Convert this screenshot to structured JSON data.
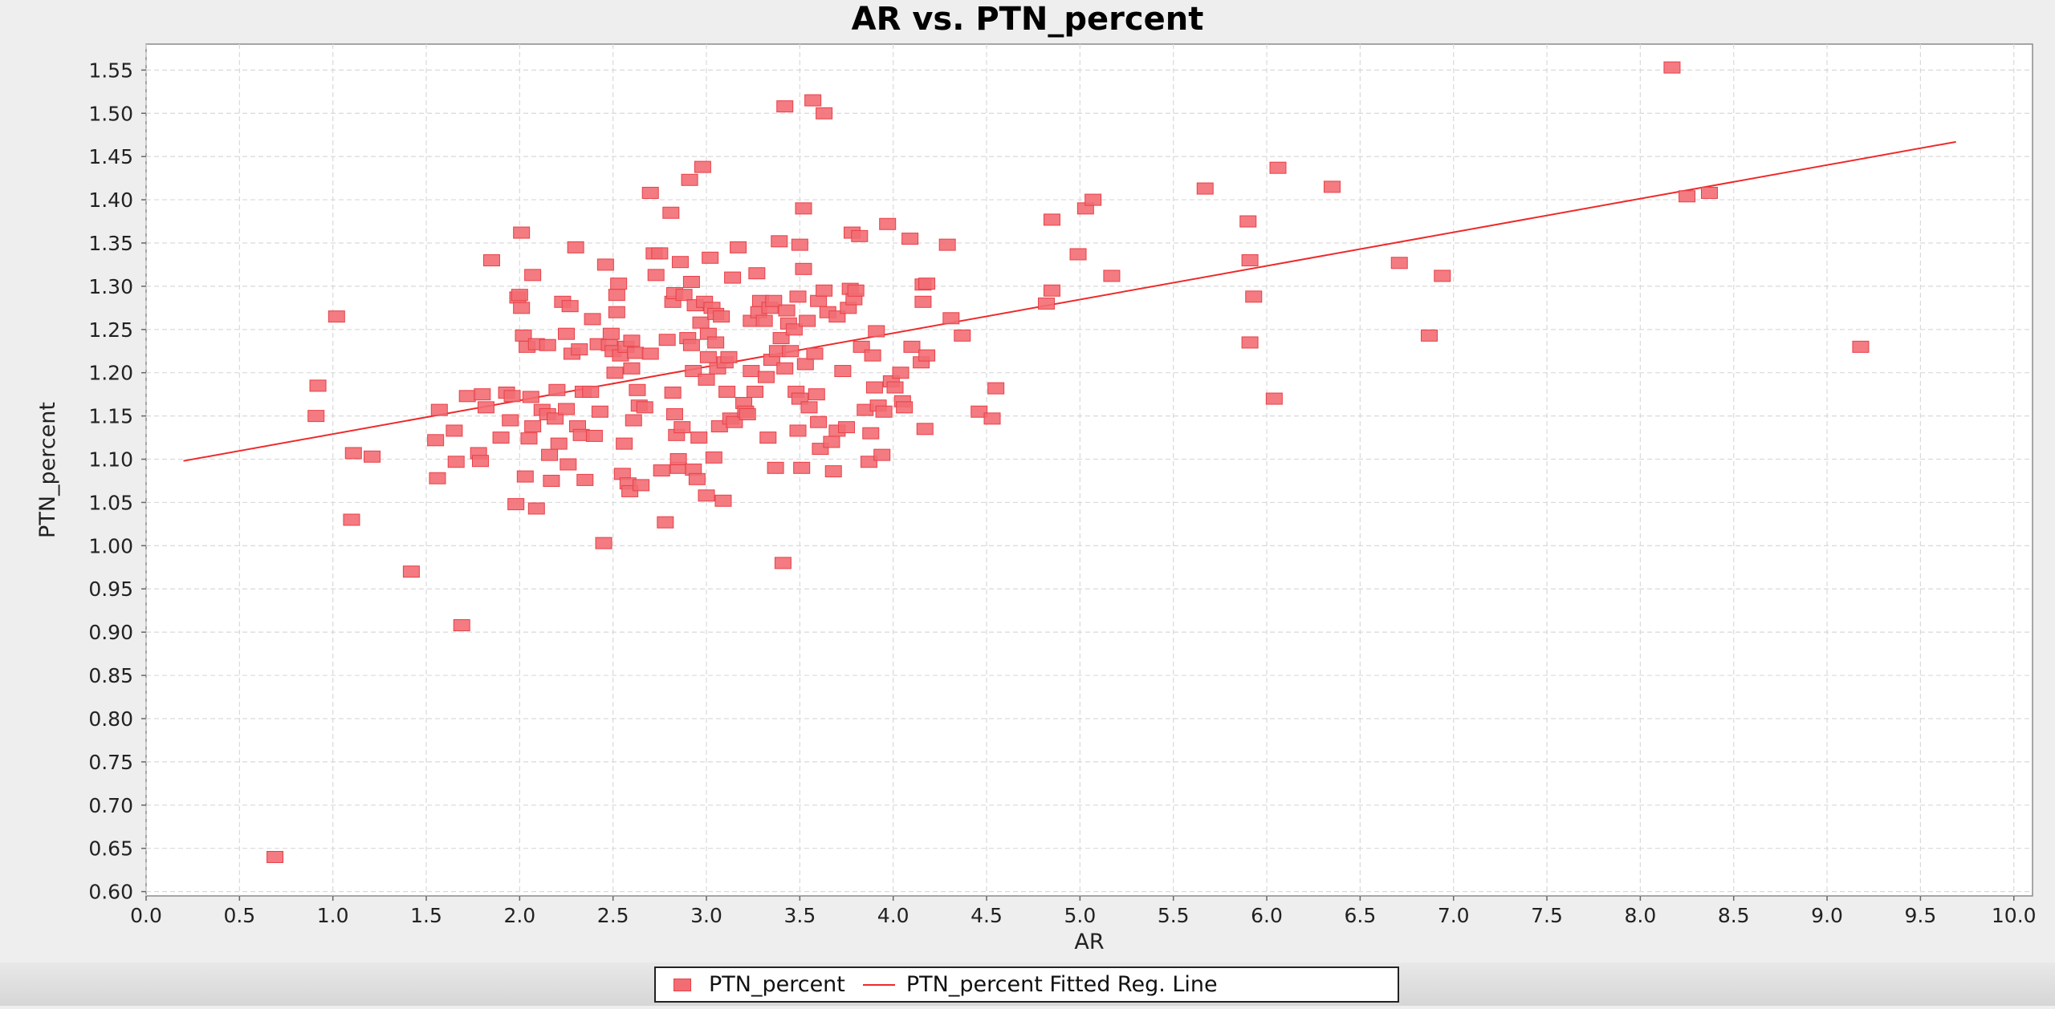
{
  "window": {
    "title": "AR vs. PTN_percent"
  },
  "colors": {
    "marker": "#f26d73",
    "marker_stroke": "#e84048",
    "line": "#ee2a2a",
    "grid": "#d9d9d9",
    "plot_bg": "#ffffff",
    "page_bg": "#eeeeee"
  },
  "chart_data": {
    "type": "scatter",
    "title": "AR vs. PTN_percent",
    "xlabel": "AR",
    "ylabel": "PTN_percent",
    "xlim": [
      0.0,
      10.1
    ],
    "ylim": [
      0.595,
      1.58
    ],
    "x_ticks": [
      "0.0",
      "0.5",
      "1.0",
      "1.5",
      "2.0",
      "2.5",
      "3.0",
      "3.5",
      "4.0",
      "4.5",
      "5.0",
      "5.5",
      "6.0",
      "6.5",
      "7.0",
      "7.5",
      "8.0",
      "8.5",
      "9.0",
      "9.5",
      "10.0"
    ],
    "y_ticks": [
      "0.60",
      "0.65",
      "0.70",
      "0.75",
      "0.80",
      "0.85",
      "0.90",
      "0.95",
      "1.00",
      "1.05",
      "1.10",
      "1.15",
      "1.20",
      "1.25",
      "1.30",
      "1.35",
      "1.40",
      "1.45",
      "1.50",
      "1.55"
    ],
    "grid": true,
    "legend_position": "bottom-center",
    "series": [
      {
        "name": "PTN_percent",
        "kind": "scatter",
        "points": [
          [
            0.69,
            0.64
          ],
          [
            0.91,
            1.15
          ],
          [
            0.92,
            1.185
          ],
          [
            1.02,
            1.265
          ],
          [
            1.1,
            1.03
          ],
          [
            1.11,
            1.107
          ],
          [
            1.21,
            1.103
          ],
          [
            1.42,
            0.97
          ],
          [
            1.55,
            1.122
          ],
          [
            1.56,
            1.078
          ],
          [
            1.57,
            1.157
          ],
          [
            1.65,
            1.133
          ],
          [
            1.66,
            1.097
          ],
          [
            1.69,
            0.908
          ],
          [
            1.72,
            1.173
          ],
          [
            1.78,
            1.107
          ],
          [
            1.79,
            1.098
          ],
          [
            1.8,
            1.175
          ],
          [
            1.82,
            1.16
          ],
          [
            1.85,
            1.33
          ],
          [
            1.9,
            1.125
          ],
          [
            1.93,
            1.177
          ],
          [
            1.95,
            1.145
          ],
          [
            1.96,
            1.173
          ],
          [
            1.98,
            1.048
          ],
          [
            1.99,
            1.287
          ],
          [
            2.0,
            1.29
          ],
          [
            2.01,
            1.275
          ],
          [
            2.01,
            1.362
          ],
          [
            2.02,
            1.243
          ],
          [
            2.03,
            1.08
          ],
          [
            2.04,
            1.23
          ],
          [
            2.05,
            1.124
          ],
          [
            2.06,
            1.172
          ],
          [
            2.07,
            1.138
          ],
          [
            2.07,
            1.313
          ],
          [
            2.09,
            1.233
          ],
          [
            2.09,
            1.043
          ],
          [
            2.12,
            1.157
          ],
          [
            2.15,
            1.232
          ],
          [
            2.15,
            1.152
          ],
          [
            2.16,
            1.105
          ],
          [
            2.17,
            1.075
          ],
          [
            2.19,
            1.147
          ],
          [
            2.2,
            1.18
          ],
          [
            2.21,
            1.118
          ],
          [
            2.23,
            1.282
          ],
          [
            2.25,
            1.245
          ],
          [
            2.25,
            1.158
          ],
          [
            2.26,
            1.094
          ],
          [
            2.27,
            1.277
          ],
          [
            2.28,
            1.222
          ],
          [
            2.3,
            1.345
          ],
          [
            2.31,
            1.138
          ],
          [
            2.32,
            1.227
          ],
          [
            2.33,
            1.128
          ],
          [
            2.34,
            1.178
          ],
          [
            2.35,
            1.076
          ],
          [
            2.38,
            1.178
          ],
          [
            2.39,
            1.262
          ],
          [
            2.4,
            1.127
          ],
          [
            2.42,
            1.233
          ],
          [
            2.43,
            1.155
          ],
          [
            2.45,
            1.003
          ],
          [
            2.46,
            1.325
          ],
          [
            2.48,
            1.232
          ],
          [
            2.49,
            1.245
          ],
          [
            2.5,
            1.225
          ],
          [
            2.51,
            1.2
          ],
          [
            2.52,
            1.29
          ],
          [
            2.52,
            1.27
          ],
          [
            2.53,
            1.303
          ],
          [
            2.54,
            1.22
          ],
          [
            2.55,
            1.083
          ],
          [
            2.56,
            1.118
          ],
          [
            2.57,
            1.23
          ],
          [
            2.58,
            1.072
          ],
          [
            2.59,
            1.063
          ],
          [
            2.6,
            1.237
          ],
          [
            2.6,
            1.205
          ],
          [
            2.61,
            1.145
          ],
          [
            2.62,
            1.223
          ],
          [
            2.63,
            1.18
          ],
          [
            2.64,
            1.162
          ],
          [
            2.65,
            1.07
          ],
          [
            2.67,
            1.16
          ],
          [
            2.7,
            1.222
          ],
          [
            2.7,
            1.408
          ],
          [
            2.72,
            1.338
          ],
          [
            2.73,
            1.313
          ],
          [
            2.75,
            1.338
          ],
          [
            2.76,
            1.087
          ],
          [
            2.78,
            1.027
          ],
          [
            2.79,
            1.238
          ],
          [
            2.81,
            1.385
          ],
          [
            2.82,
            1.282
          ],
          [
            2.82,
            1.177
          ],
          [
            2.83,
            1.292
          ],
          [
            2.83,
            1.152
          ],
          [
            2.84,
            1.128
          ],
          [
            2.85,
            1.09
          ],
          [
            2.85,
            1.1
          ],
          [
            2.86,
            1.328
          ],
          [
            2.87,
            1.137
          ],
          [
            2.88,
            1.29
          ],
          [
            2.9,
            1.24
          ],
          [
            2.91,
            1.423
          ],
          [
            2.92,
            1.305
          ],
          [
            2.92,
            1.232
          ],
          [
            2.93,
            1.088
          ],
          [
            2.93,
            1.202
          ],
          [
            2.94,
            1.278
          ],
          [
            2.95,
            1.077
          ],
          [
            2.96,
            1.125
          ],
          [
            2.97,
            1.258
          ],
          [
            2.98,
            1.438
          ],
          [
            2.99,
            1.282
          ],
          [
            3.0,
            1.192
          ],
          [
            3.0,
            1.058
          ],
          [
            3.01,
            1.245
          ],
          [
            3.01,
            1.218
          ],
          [
            3.02,
            1.333
          ],
          [
            3.03,
            1.275
          ],
          [
            3.04,
            1.102
          ],
          [
            3.05,
            1.268
          ],
          [
            3.05,
            1.235
          ],
          [
            3.06,
            1.205
          ],
          [
            3.07,
            1.138
          ],
          [
            3.08,
            1.265
          ],
          [
            3.09,
            1.052
          ],
          [
            3.1,
            1.212
          ],
          [
            3.11,
            1.178
          ],
          [
            3.12,
            1.218
          ],
          [
            3.13,
            1.147
          ],
          [
            3.14,
            1.31
          ],
          [
            3.15,
            1.143
          ],
          [
            3.17,
            1.345
          ],
          [
            3.2,
            1.165
          ],
          [
            3.21,
            1.155
          ],
          [
            3.22,
            1.152
          ],
          [
            3.24,
            1.202
          ],
          [
            3.24,
            1.26
          ],
          [
            3.26,
            1.178
          ],
          [
            3.27,
            1.315
          ],
          [
            3.28,
            1.27
          ],
          [
            3.29,
            1.283
          ],
          [
            3.31,
            1.26
          ],
          [
            3.32,
            1.195
          ],
          [
            3.33,
            1.125
          ],
          [
            3.34,
            1.275
          ],
          [
            3.35,
            1.215
          ],
          [
            3.36,
            1.283
          ],
          [
            3.37,
            1.09
          ],
          [
            3.38,
            1.225
          ],
          [
            3.39,
            1.352
          ],
          [
            3.4,
            1.24
          ],
          [
            3.41,
            0.98
          ],
          [
            3.42,
            1.205
          ],
          [
            3.42,
            1.508
          ],
          [
            3.43,
            1.272
          ],
          [
            3.44,
            1.257
          ],
          [
            3.45,
            1.225
          ],
          [
            3.47,
            1.25
          ],
          [
            3.48,
            1.178
          ],
          [
            3.49,
            1.288
          ],
          [
            3.49,
            1.133
          ],
          [
            3.5,
            1.348
          ],
          [
            3.5,
            1.17
          ],
          [
            3.51,
            1.09
          ],
          [
            3.52,
            1.32
          ],
          [
            3.52,
            1.39
          ],
          [
            3.53,
            1.21
          ],
          [
            3.54,
            1.26
          ],
          [
            3.55,
            1.16
          ],
          [
            3.57,
            1.515
          ],
          [
            3.58,
            1.222
          ],
          [
            3.59,
            1.175
          ],
          [
            3.6,
            1.283
          ],
          [
            3.6,
            1.143
          ],
          [
            3.61,
            1.112
          ],
          [
            3.63,
            1.5
          ],
          [
            3.63,
            1.295
          ],
          [
            3.65,
            1.27
          ],
          [
            3.67,
            1.12
          ],
          [
            3.68,
            1.086
          ],
          [
            3.7,
            1.265
          ],
          [
            3.7,
            1.133
          ],
          [
            3.73,
            1.202
          ],
          [
            3.75,
            1.137
          ],
          [
            3.76,
            1.275
          ],
          [
            3.77,
            1.297
          ],
          [
            3.78,
            1.362
          ],
          [
            3.79,
            1.285
          ],
          [
            3.8,
            1.295
          ],
          [
            3.82,
            1.358
          ],
          [
            3.83,
            1.23
          ],
          [
            3.85,
            1.157
          ],
          [
            3.87,
            1.097
          ],
          [
            3.88,
            1.13
          ],
          [
            3.89,
            1.22
          ],
          [
            3.9,
            1.183
          ],
          [
            3.91,
            1.248
          ],
          [
            3.92,
            1.162
          ],
          [
            3.94,
            1.105
          ],
          [
            3.95,
            1.155
          ],
          [
            3.97,
            1.372
          ],
          [
            3.99,
            1.19
          ],
          [
            4.01,
            1.183
          ],
          [
            4.04,
            1.2
          ],
          [
            4.05,
            1.167
          ],
          [
            4.06,
            1.16
          ],
          [
            4.09,
            1.355
          ],
          [
            4.1,
            1.23
          ],
          [
            4.15,
            1.212
          ],
          [
            4.16,
            1.302
          ],
          [
            4.16,
            1.282
          ],
          [
            4.17,
            1.135
          ],
          [
            4.18,
            1.22
          ],
          [
            4.18,
            1.303
          ],
          [
            4.29,
            1.348
          ],
          [
            4.31,
            1.263
          ],
          [
            4.37,
            1.243
          ],
          [
            4.46,
            1.155
          ],
          [
            4.53,
            1.147
          ],
          [
            4.55,
            1.182
          ],
          [
            4.82,
            1.28
          ],
          [
            4.85,
            1.295
          ],
          [
            4.85,
            1.377
          ],
          [
            4.99,
            1.337
          ],
          [
            5.03,
            1.39
          ],
          [
            5.07,
            1.4
          ],
          [
            5.17,
            1.312
          ],
          [
            5.67,
            1.413
          ],
          [
            5.9,
            1.375
          ],
          [
            5.91,
            1.235
          ],
          [
            5.91,
            1.33
          ],
          [
            5.93,
            1.288
          ],
          [
            6.04,
            1.17
          ],
          [
            6.06,
            1.437
          ],
          [
            6.35,
            1.415
          ],
          [
            6.71,
            1.327
          ],
          [
            6.87,
            1.243
          ],
          [
            6.94,
            1.312
          ],
          [
            8.17,
            1.553
          ],
          [
            8.25,
            1.404
          ],
          [
            8.37,
            1.408
          ],
          [
            9.18,
            1.23
          ]
        ]
      },
      {
        "name": "PTN_percent Fitted Reg. Line",
        "kind": "line",
        "points": [
          [
            0.2,
            1.098
          ],
          [
            9.69,
            1.467
          ]
        ]
      }
    ]
  },
  "legend": {
    "items": [
      {
        "label": "PTN_percent",
        "symbol": "square"
      },
      {
        "label": "PTN_percent Fitted Reg. Line",
        "symbol": "line"
      }
    ]
  }
}
